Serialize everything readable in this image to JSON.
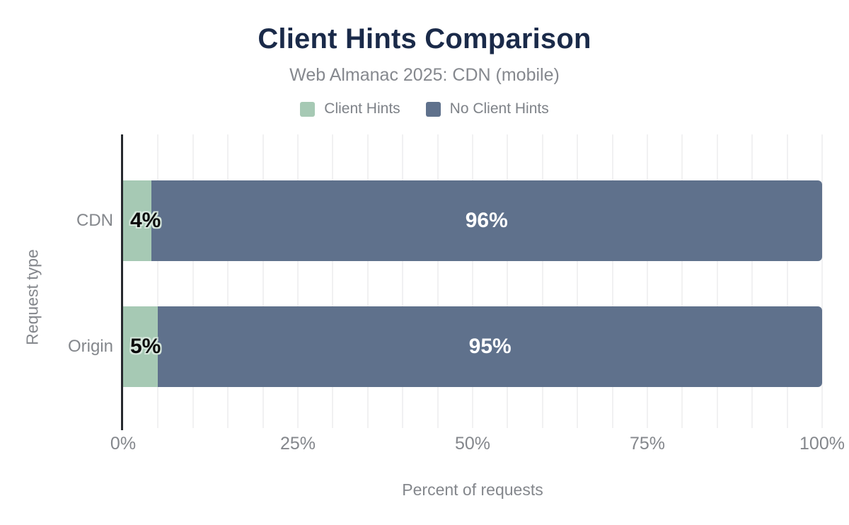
{
  "header": {
    "title": "Client Hints Comparison",
    "subtitle": "Web Almanac 2025: CDN (mobile)"
  },
  "legend": {
    "items": [
      {
        "label": "Client Hints",
        "color": "#a6c9b4"
      },
      {
        "label": "No Client Hints",
        "color": "#5f718c"
      }
    ]
  },
  "axes": {
    "x_label": "Percent of requests",
    "y_label": "Request type"
  },
  "colors": {
    "title_text": "#1a2a49",
    "muted_text": "#85888e",
    "axis_line": "#26292e",
    "gridline": "#f1f1f2",
    "series_client_hints": "#a6c9b4",
    "series_no_client_hints": "#5f718c",
    "bar_label_outline": "#d6e7dc",
    "bar_label_dark": "#0b0b0b",
    "bar_label_light": "#ffffff"
  },
  "chart_data": {
    "type": "bar",
    "orientation": "horizontal",
    "stacked": true,
    "title": "Client Hints Comparison",
    "subtitle": "Web Almanac 2025: CDN (mobile)",
    "xlabel": "Percent of requests",
    "ylabel": "Request type",
    "xlim": [
      0,
      100
    ],
    "grid": true,
    "grid_step": 5,
    "legend_position": "top",
    "x_tick_values": [
      0,
      25,
      50,
      75,
      100
    ],
    "x_tick_labels": [
      "0%",
      "25%",
      "50%",
      "75%",
      "100%"
    ],
    "categories": [
      "CDN",
      "Origin"
    ],
    "series": [
      {
        "name": "Client Hints",
        "color": "#a6c9b4",
        "values": [
          4,
          5
        ],
        "labels": [
          "4%",
          "5%"
        ],
        "label_position": "inside-left"
      },
      {
        "name": "No Client Hints",
        "color": "#5f718c",
        "values": [
          96,
          95
        ],
        "labels": [
          "96%",
          "95%"
        ],
        "label_position": "center"
      }
    ]
  }
}
